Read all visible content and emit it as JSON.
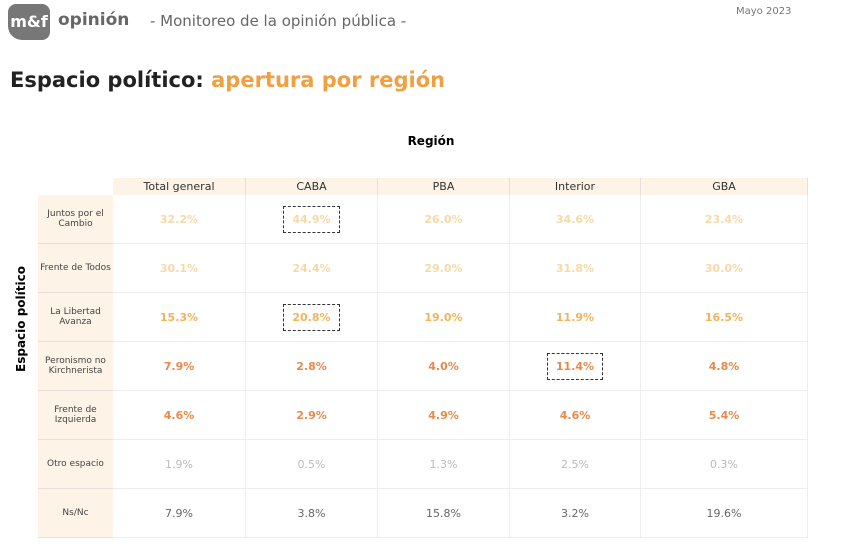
{
  "header": {
    "logo": "m&f",
    "brand": "opinión",
    "tagline": "- Monitoreo de la opinión pública -",
    "date": "Mayo 2023"
  },
  "title": {
    "main": "Espacio político:",
    "accent": "apertura por región"
  },
  "table": {
    "column_group": "Región",
    "row_group": "Espacio político",
    "columns": [
      "Total general",
      "CABA",
      "PBA",
      "Interior",
      "GBA"
    ],
    "rows": [
      {
        "label": "Juntos por el Cambio",
        "cells": [
          "32.2%",
          "44.9%",
          "26.0%",
          "34.6%",
          "23.4%"
        ]
      },
      {
        "label": "Frente de Todos",
        "cells": [
          "30.1%",
          "24.4%",
          "29.0%",
          "31.8%",
          "30.0%"
        ]
      },
      {
        "label": "La Libertad Avanza",
        "cells": [
          "15.3%",
          "20.8%",
          "19.0%",
          "11.9%",
          "16.5%"
        ]
      },
      {
        "label": "Peronismo no Kirchnerista",
        "cells": [
          "7.9%",
          "2.8%",
          "4.0%",
          "11.4%",
          "4.8%"
        ]
      },
      {
        "label": "Frente de Izquierda",
        "cells": [
          "4.6%",
          "2.9%",
          "4.9%",
          "4.6%",
          "5.4%"
        ]
      },
      {
        "label": "Otro espacio",
        "cells": [
          "1.9%",
          "0.5%",
          "1.3%",
          "2.5%",
          "0.3%"
        ]
      },
      {
        "label": "Ns/Nc",
        "cells": [
          "7.9%",
          "3.8%",
          "15.8%",
          "3.2%",
          "19.6%"
        ]
      }
    ]
  }
}
